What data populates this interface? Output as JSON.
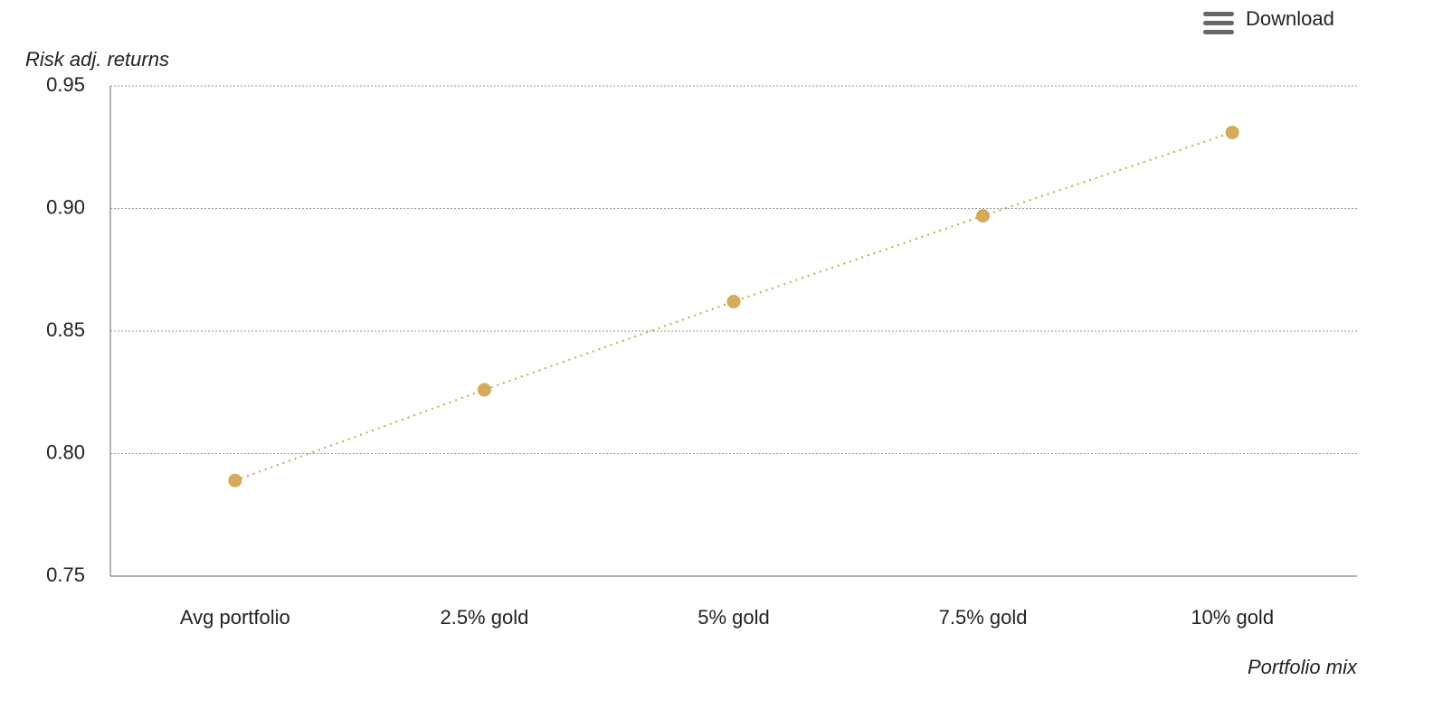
{
  "toolbar": {
    "download": "Download"
  },
  "chart_data": {
    "type": "line",
    "y_label": "Risk adj. returns",
    "x_label": "Portfolio mix",
    "categories": [
      "Avg portfolio",
      "2.5% gold",
      "5% gold",
      "7.5% gold",
      "10% gold"
    ],
    "series": [
      {
        "name": "Risk adj. returns",
        "color": "#d4aa5b",
        "values": [
          0.789,
          0.826,
          0.862,
          0.897,
          0.931
        ]
      }
    ],
    "ylim": [
      0.75,
      0.95
    ],
    "yticks": [
      0.75,
      {
        "value": 0.8,
        "label": "0.80"
      },
      0.85,
      {
        "value": 0.9,
        "label": "0.90"
      },
      0.95
    ],
    "grid": true
  }
}
